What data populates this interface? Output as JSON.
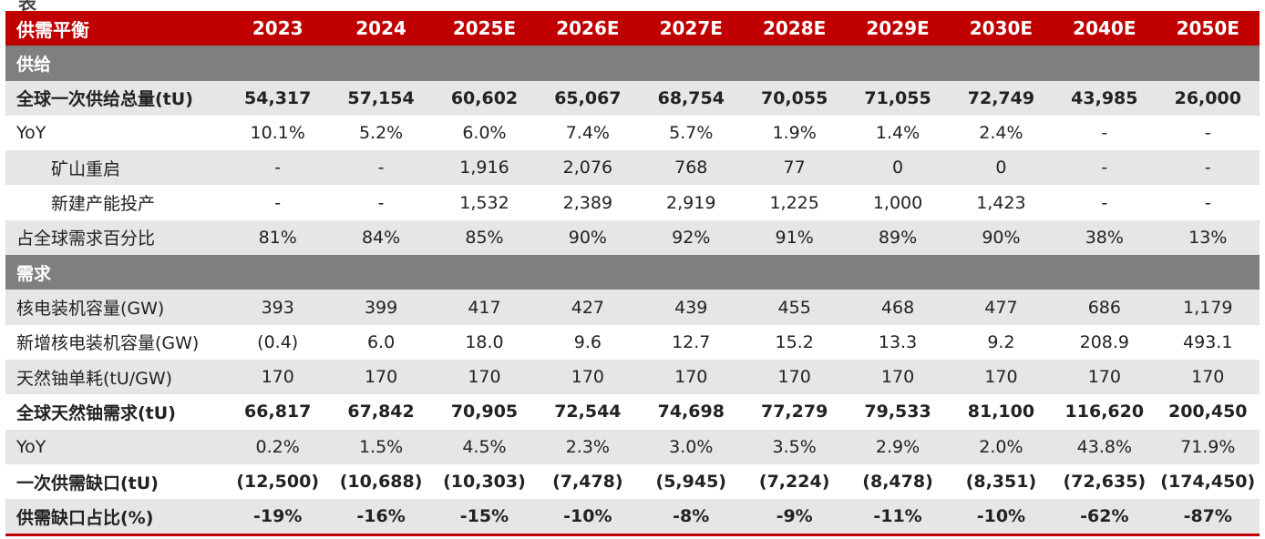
{
  "header": {
    "label": "供需平衡",
    "years": [
      "2023",
      "2024",
      "2025E",
      "2026E",
      "2027E",
      "2028E",
      "2029E",
      "2030E",
      "2040E",
      "2050E"
    ]
  },
  "rows": [
    {
      "type": "section",
      "label": "供给"
    },
    {
      "type": "data",
      "label": "全球一次供给总量(tU)",
      "bold": true,
      "shade": true,
      "values": [
        "54,317",
        "57,154",
        "60,602",
        "65,067",
        "68,754",
        "70,055",
        "71,055",
        "72,749",
        "43,985",
        "26,000"
      ]
    },
    {
      "type": "data",
      "label": "YoY",
      "values": [
        "10.1%",
        "5.2%",
        "6.0%",
        "7.4%",
        "5.7%",
        "1.9%",
        "1.4%",
        "2.4%",
        "-",
        "-"
      ]
    },
    {
      "type": "data",
      "label": "矿山重启",
      "indent": true,
      "shade": true,
      "values": [
        "-",
        "-",
        "1,916",
        "2,076",
        "768",
        "77",
        "0",
        "0",
        "-",
        "-"
      ]
    },
    {
      "type": "data",
      "label": "新建产能投产",
      "indent": true,
      "values": [
        "-",
        "-",
        "1,532",
        "2,389",
        "2,919",
        "1,225",
        "1,000",
        "1,423",
        "-",
        "-"
      ]
    },
    {
      "type": "data",
      "label": "占全球需求百分比",
      "shade": true,
      "values": [
        "81%",
        "84%",
        "85%",
        "90%",
        "92%",
        "91%",
        "89%",
        "90%",
        "38%",
        "13%"
      ]
    },
    {
      "type": "section",
      "label": "需求"
    },
    {
      "type": "data",
      "label": "核电装机容量(GW)",
      "shade": true,
      "values": [
        "393",
        "399",
        "417",
        "427",
        "439",
        "455",
        "468",
        "477",
        "686",
        "1,179"
      ]
    },
    {
      "type": "data",
      "label": "新增核电装机容量(GW)",
      "values": [
        "(0.4)",
        "6.0",
        "18.0",
        "9.6",
        "12.7",
        "15.2",
        "13.3",
        "9.2",
        "208.9",
        "493.1"
      ]
    },
    {
      "type": "data",
      "label": "天然铀单耗(tU/GW)",
      "shade": true,
      "values": [
        "170",
        "170",
        "170",
        "170",
        "170",
        "170",
        "170",
        "170",
        "170",
        "170"
      ]
    },
    {
      "type": "data",
      "label": "全球天然铀需求(tU)",
      "bold": true,
      "values": [
        "66,817",
        "67,842",
        "70,905",
        "72,544",
        "74,698",
        "77,279",
        "79,533",
        "81,100",
        "116,620",
        "200,450"
      ]
    },
    {
      "type": "data",
      "label": "YoY",
      "shade": true,
      "values": [
        "0.2%",
        "1.5%",
        "4.5%",
        "2.3%",
        "3.0%",
        "3.5%",
        "2.9%",
        "2.0%",
        "43.8%",
        "71.9%"
      ]
    },
    {
      "type": "data",
      "label": "一次供需缺口(tU)",
      "bold": true,
      "values": [
        "(12,500)",
        "(10,688)",
        "(10,303)",
        "(7,478)",
        "(5,945)",
        "(7,224)",
        "(8,478)",
        "(8,351)",
        "(72,635)",
        "(174,450)"
      ]
    },
    {
      "type": "data",
      "label": "供需缺口占比(%)",
      "bold": true,
      "shade": true,
      "last": true,
      "values": [
        "-19%",
        "-16%",
        "-15%",
        "-10%",
        "-8%",
        "-9%",
        "-11%",
        "-10%",
        "-62%",
        "-87%"
      ]
    }
  ]
}
